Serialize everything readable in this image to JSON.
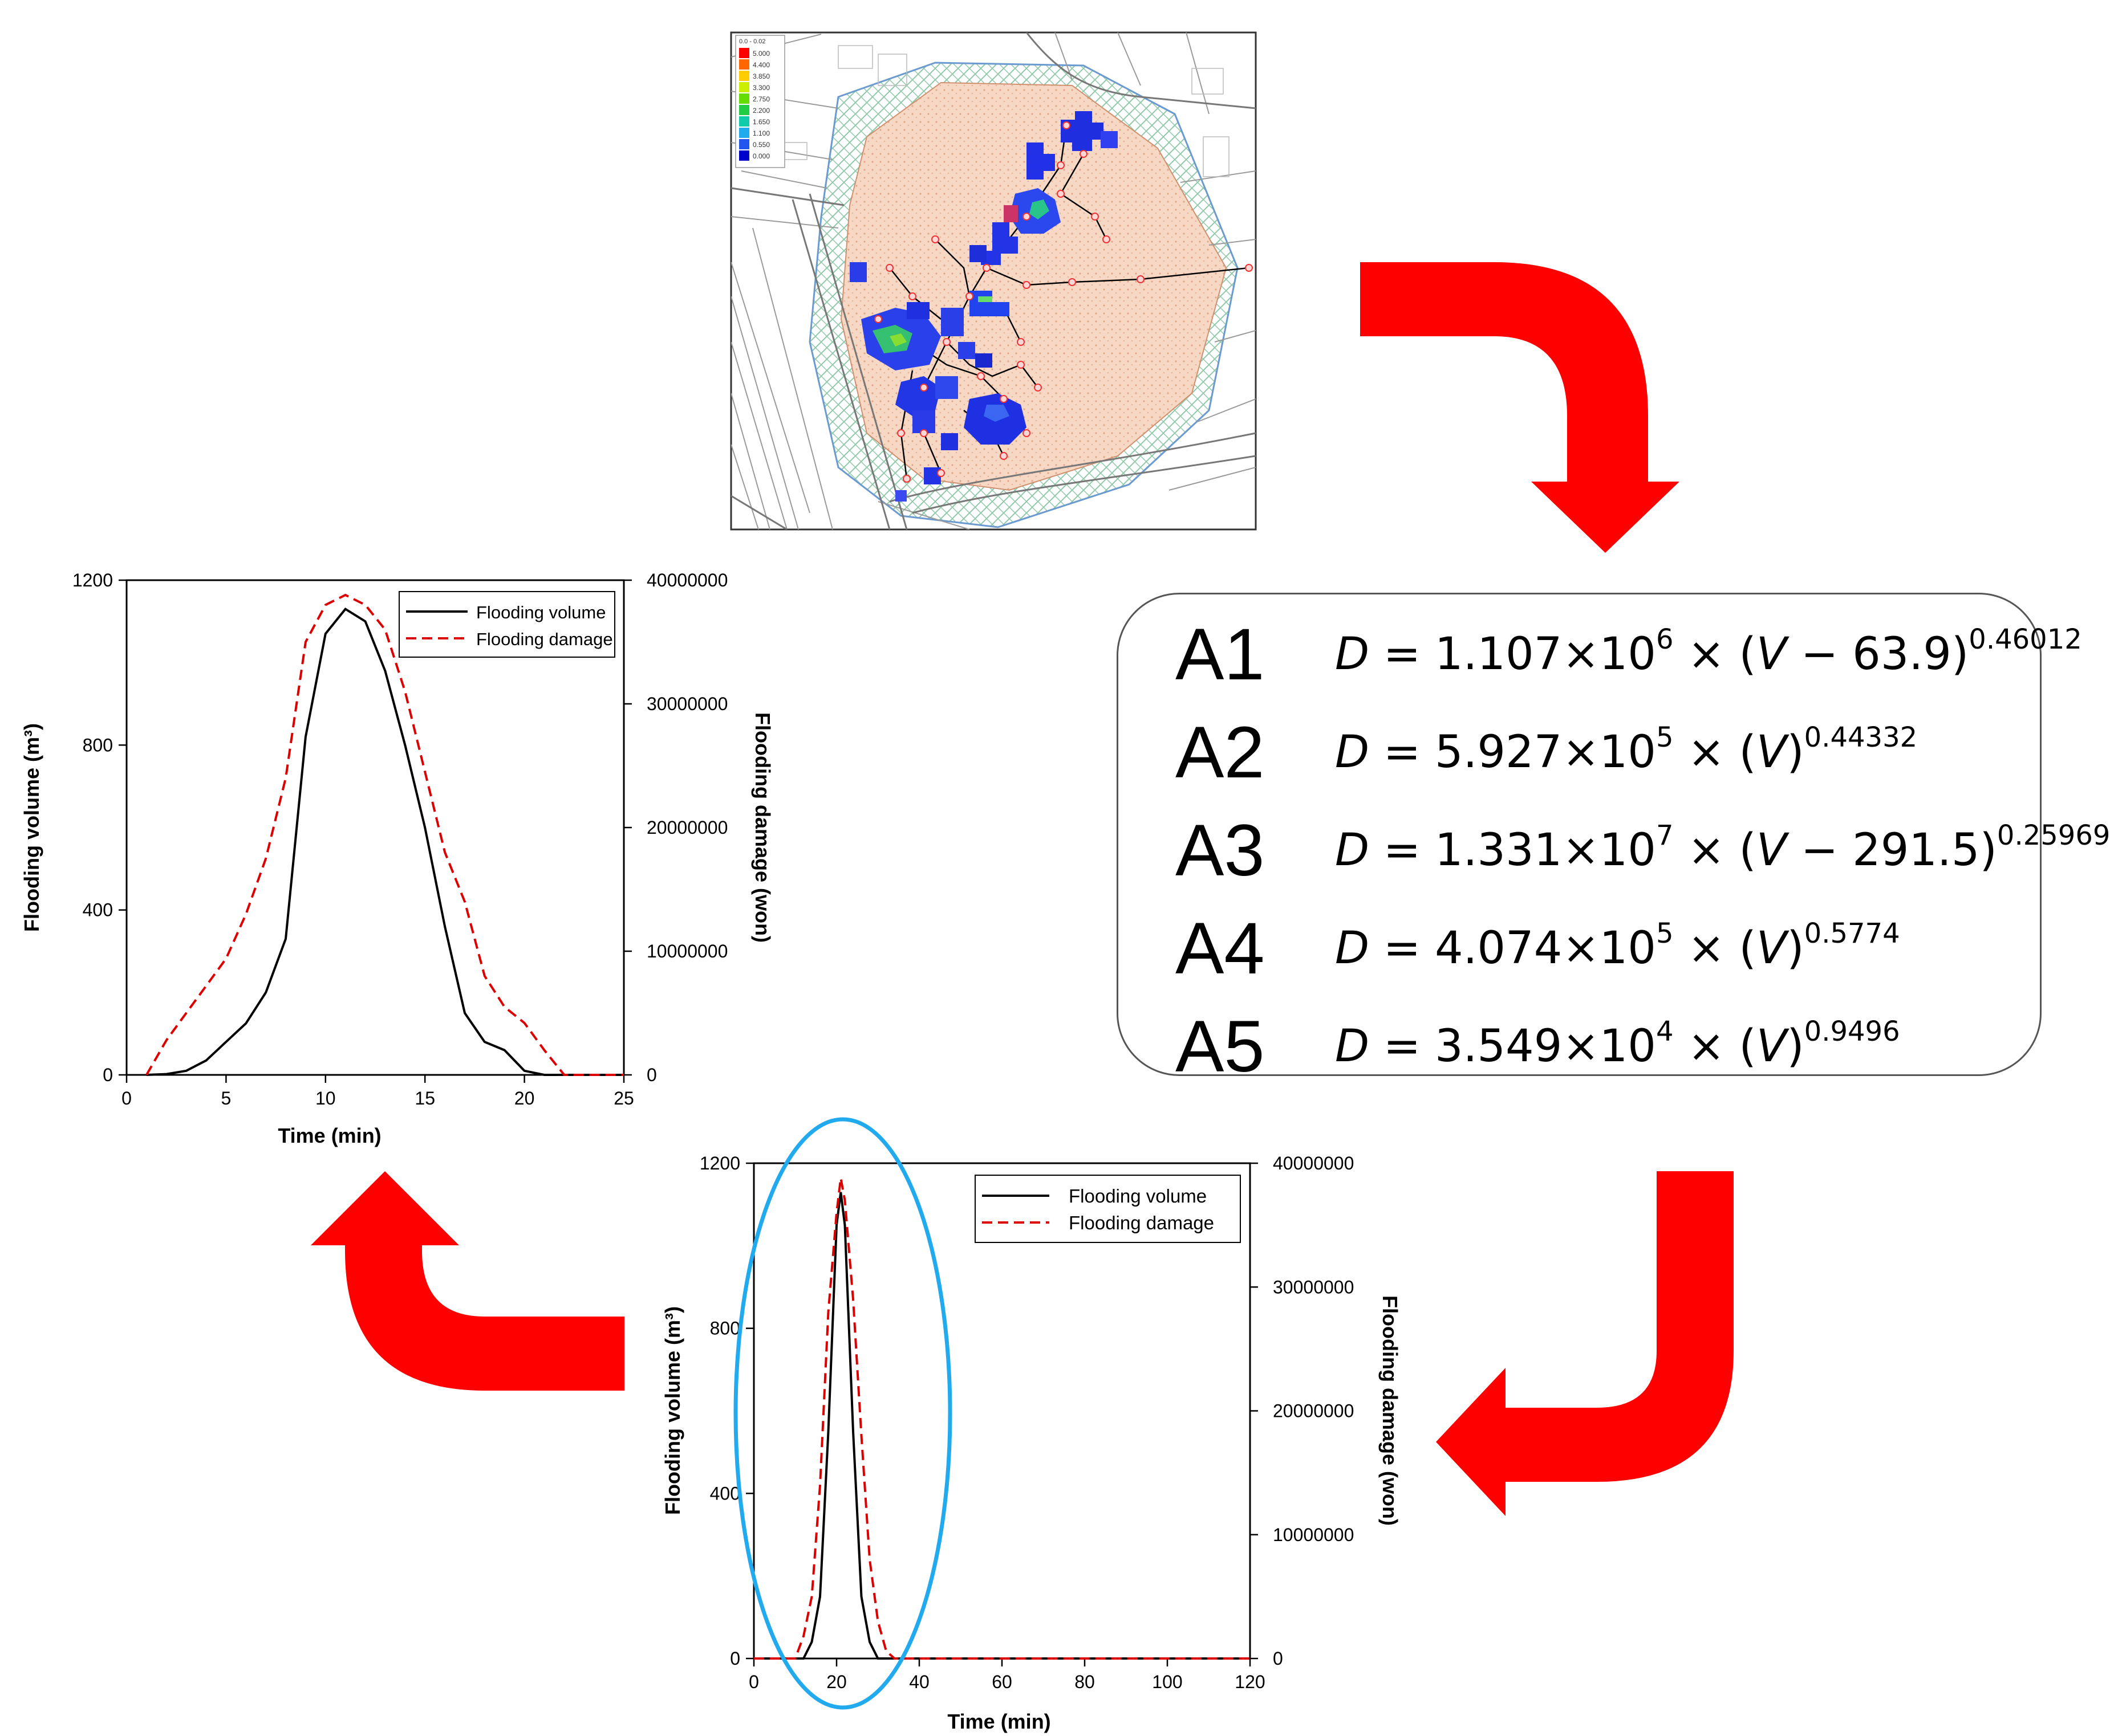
{
  "map": {
    "legend_title": "0.0 - 0.02",
    "legend_values": [
      "5.000",
      "4.400",
      "3.850",
      "3.300",
      "2.750",
      "2.200",
      "1.650",
      "1.100",
      "0.550",
      "0.000"
    ],
    "legend_colors": [
      "#ff0000",
      "#ff6600",
      "#ffcc00",
      "#ccee00",
      "#66dd00",
      "#22cc44",
      "#11ccaa",
      "#22aaee",
      "#2255ee",
      "#0000cc"
    ]
  },
  "equations": [
    {
      "label": "A1",
      "coef": "1.107",
      "exp10": "6",
      "shift": "63.9",
      "power": "0.46012"
    },
    {
      "label": "A2",
      "coef": "5.927",
      "exp10": "5",
      "shift": "",
      "power": "0.44332"
    },
    {
      "label": "A3",
      "coef": "1.331",
      "exp10": "7",
      "shift": "291.5",
      "power": "0.25969"
    },
    {
      "label": "A4",
      "coef": "4.074",
      "exp10": "5",
      "shift": "",
      "power": "0.5774"
    },
    {
      "label": "A5",
      "coef": "3.549",
      "exp10": "4",
      "shift": "",
      "power": "0.9496"
    }
  ],
  "colors": {
    "arrow": "#ff0000",
    "highlight": "#22aaee",
    "volume": "#000000",
    "damage": "#dd0000"
  },
  "chart_data": [
    {
      "type": "line",
      "xlabel": "Time (min)",
      "ylabel": "Flooding volume (m³)",
      "y2label": "Flooding damage (won)",
      "xlim": [
        0,
        25
      ],
      "ylim": [
        0,
        1200
      ],
      "y2lim": [
        0,
        40000000
      ],
      "xticks": [
        0,
        5,
        10,
        15,
        20,
        25
      ],
      "yticks": [
        0,
        400,
        800,
        1200
      ],
      "y2ticks": [
        0,
        10000000,
        20000000,
        30000000,
        40000000
      ],
      "legend": "top-right",
      "series": [
        {
          "name": "Flooding volume",
          "axis": "left",
          "style": "solid",
          "x": [
            1,
            2,
            3,
            4,
            5,
            6,
            7,
            8,
            9,
            10,
            11,
            12,
            13,
            14,
            15,
            16,
            17,
            18,
            19,
            20,
            21,
            22,
            25
          ],
          "y": [
            0,
            2,
            10,
            35,
            80,
            125,
            200,
            330,
            820,
            1070,
            1130,
            1100,
            980,
            800,
            600,
            360,
            150,
            80,
            60,
            10,
            0,
            0,
            0
          ]
        },
        {
          "name": "Flooding damage",
          "axis": "right",
          "style": "dashed",
          "x": [
            1,
            2,
            3,
            4,
            5,
            6,
            7,
            8,
            9,
            10,
            11,
            12,
            13,
            14,
            15,
            16,
            17,
            18,
            19,
            20,
            21,
            22,
            25
          ],
          "y": [
            0,
            2800000,
            5000000,
            7200000,
            9400000,
            13000000,
            17500000,
            24000000,
            35000000,
            38000000,
            38800000,
            38000000,
            36000000,
            31000000,
            24500000,
            18000000,
            14000000,
            8000000,
            5500000,
            4200000,
            2000000,
            0,
            0
          ]
        }
      ]
    },
    {
      "type": "line",
      "xlabel": "Time (min)",
      "ylabel": "Flooding volume (m³)",
      "y2label": "Flooding damage (won)",
      "xlim": [
        0,
        120
      ],
      "ylim": [
        0,
        1200
      ],
      "y2lim": [
        0,
        40000000
      ],
      "xticks": [
        0,
        20,
        40,
        60,
        80,
        100,
        120
      ],
      "yticks": [
        0,
        400,
        800,
        1200
      ],
      "y2ticks": [
        0,
        10000000,
        20000000,
        30000000,
        40000000
      ],
      "legend": "top-right",
      "series": [
        {
          "name": "Flooding volume",
          "axis": "left",
          "style": "solid",
          "x": [
            0,
            12,
            14,
            16,
            18,
            20,
            21,
            22,
            24,
            26,
            28,
            30,
            32,
            120
          ],
          "y": [
            0,
            0,
            40,
            150,
            550,
            1050,
            1130,
            1050,
            550,
            150,
            40,
            0,
            0,
            0
          ]
        },
        {
          "name": "Flooding damage",
          "axis": "right",
          "style": "dashed",
          "x": [
            0,
            10,
            12,
            14,
            16,
            18,
            20,
            21,
            22,
            24,
            26,
            28,
            30,
            32,
            34,
            120
          ],
          "y": [
            0,
            0,
            1800000,
            5000000,
            14000000,
            28000000,
            36000000,
            38800000,
            37000000,
            29000000,
            18000000,
            8000000,
            3000000,
            600000,
            0,
            0
          ]
        }
      ]
    }
  ]
}
